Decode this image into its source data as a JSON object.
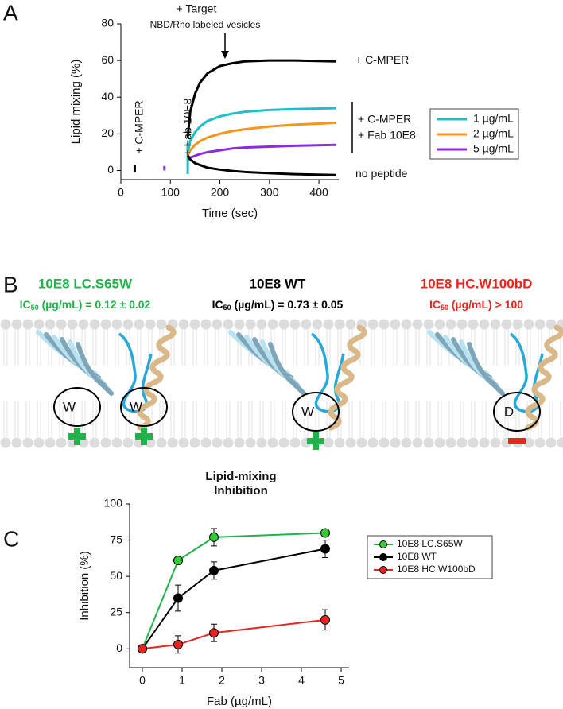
{
  "panel_labels": [
    "A",
    "B",
    "C"
  ],
  "chart_data": [
    {
      "type": "line",
      "x": [
        135,
        140,
        150,
        160,
        175,
        200,
        225,
        250,
        300,
        350,
        435
      ],
      "series": [
        {
          "label": "+ C-MPER",
          "color": "#000000",
          "values": [
            18,
            32,
            42,
            48,
            53,
            57,
            58.5,
            59.5,
            60,
            60,
            59.5
          ]
        },
        {
          "name": "1 µg/mL",
          "color": "#1fbfc4",
          "values": [
            10,
            16,
            21,
            24,
            27,
            29.5,
            31,
            32,
            33,
            33.5,
            34
          ]
        },
        {
          "name": "2 µg/mL",
          "color": "#f7941d",
          "values": [
            8,
            11,
            14,
            16,
            18,
            20,
            21.5,
            22.5,
            24,
            25,
            26
          ]
        },
        {
          "name": "5 µg/mL",
          "color": "#8a2be2",
          "values": [
            8,
            7,
            8,
            9,
            10,
            11,
            12,
            12.5,
            13,
            13.5,
            14
          ]
        },
        {
          "label": "no peptide",
          "color": "#000000",
          "values": [
            8,
            6,
            4,
            3,
            1.5,
            0.5,
            -0.3,
            -0.8,
            -1.5,
            -2,
            -2.5
          ]
        }
      ],
      "spikes": [
        {
          "x": [
            28,
            28
          ],
          "values": [
            -1,
            3
          ],
          "color": "#000000"
        },
        {
          "x": [
            88,
            88
          ],
          "values": [
            0,
            2.5
          ],
          "color": "#8a2be2"
        },
        {
          "x": [
            135,
            135
          ],
          "values": [
            -2,
            15
          ],
          "color": "#1fbfc4"
        }
      ],
      "annotations": [
        "+ Target",
        "NBD/Rho labeled vesicles",
        "+ C-MPER",
        "+ Fab 10E8"
      ],
      "bracket_label": [
        "+ C-MPER",
        "+ Fab 10E8"
      ],
      "xlabel": "Time (sec)",
      "ylabel": "Lipid mixing (%)",
      "xlim": [
        0,
        440
      ],
      "ylim": [
        -5,
        80
      ],
      "xticks": [
        0,
        100,
        200,
        300,
        400
      ],
      "yticks": [
        0,
        20,
        40,
        60,
        80
      ],
      "legend": "right"
    },
    {
      "type": "line",
      "title": [
        "Lipid-mixing",
        "Inhibition"
      ],
      "x": [
        0,
        0.9,
        1.8,
        4.6
      ],
      "series": [
        {
          "name": "10E8 LC.S65W",
          "color": "#33cc33",
          "line_color": "#22b24c",
          "values": [
            0,
            61,
            77,
            80
          ],
          "errors": [
            0,
            1.5,
            6,
            1.5
          ]
        },
        {
          "name": "10E8 WT",
          "color": "#000000",
          "line_color": "#000000",
          "values": [
            0,
            35,
            54,
            69
          ],
          "errors": [
            0,
            9,
            6,
            6
          ]
        },
        {
          "name": "10E8 HC.W100bD",
          "color": "#e8251f",
          "line_color": "#e8251f",
          "values": [
            0,
            3,
            11,
            20
          ],
          "errors": [
            0,
            6,
            6,
            7
          ]
        }
      ],
      "xlabel": "Fab (µg/mL)",
      "ylabel": "Inhibition (%)",
      "xlim": [
        -0.32,
        5.2
      ],
      "ylim": [
        -13,
        100
      ],
      "xticks": [
        0,
        1,
        2,
        3,
        4,
        5
      ],
      "yticks": [
        0,
        25,
        50,
        75,
        100
      ],
      "legend": "right"
    }
  ],
  "diagram": {
    "panels": [
      {
        "name": "10E8 LC.S65W",
        "ic_label": "IC",
        "ic_sub": "50",
        "ic_text": " (µg/mL) = 0.12 ± 0.02",
        "color": "#22b24c",
        "residues": [
          "W",
          "W"
        ]
      },
      {
        "name": "10E8 WT",
        "ic_label": "IC",
        "ic_sub": "50",
        "ic_text": " (µg/mL) = 0.73 ± 0.05",
        "color": "#000000",
        "residues": [
          "W"
        ]
      },
      {
        "name": "10E8 HC.W100bD",
        "ic_label": "IC",
        "ic_sub": "50",
        "ic_text": " (µg/mL) > 100",
        "color": "#e8251f",
        "residues": [
          "D"
        ]
      }
    ]
  }
}
